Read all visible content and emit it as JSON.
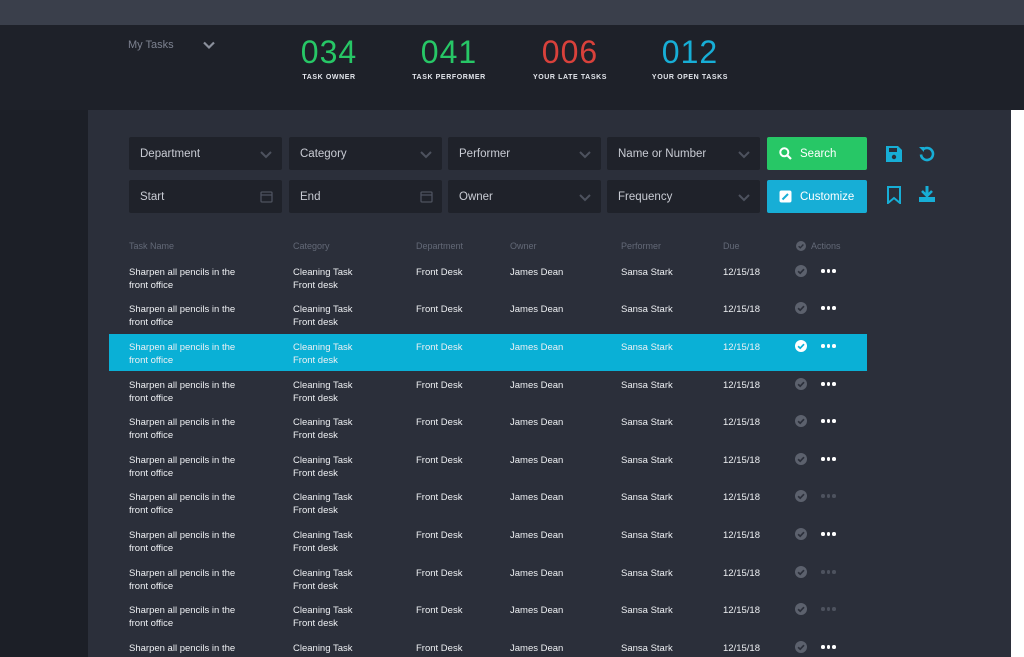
{
  "colors": {
    "background": "#1e2129",
    "panel": "#2b2f3a",
    "field": "#1f222a",
    "green": "#27c766",
    "red": "#d9413b",
    "blue": "#17aed6",
    "selected_row": "#0ab0d6"
  },
  "header": {
    "view_select": {
      "label": "My Tasks",
      "icon": "chevron-down-icon"
    },
    "stats": [
      {
        "value": "034",
        "label": "TASK OWNER",
        "color": "#27c766"
      },
      {
        "value": "041",
        "label": "TASK PERFORMER",
        "color": "#27c766"
      },
      {
        "value": "006",
        "label": "YOUR LATE TASKS",
        "color": "#d9413b"
      },
      {
        "value": "012",
        "label": "YOUR OPEN TASKS",
        "color": "#17aed6"
      }
    ]
  },
  "filters": {
    "department": "Department",
    "category": "Category",
    "performer": "Performer",
    "name_or_number": "Name or Number",
    "start": "Start",
    "end": "End",
    "owner": "Owner",
    "frequency": "Frequency",
    "search_button": "Search",
    "customize_button": "Customize"
  },
  "toolbar_icons": [
    "save-icon",
    "undo-icon",
    "bookmark-icon",
    "download-icon"
  ],
  "table": {
    "columns": {
      "task_name": "Task Name",
      "category": "Category",
      "department": "Department",
      "owner": "Owner",
      "performer": "Performer",
      "due": "Due",
      "actions": "Actions"
    },
    "rows": [
      {
        "task_line1": "Sharpen all pencils in the",
        "task_line2": "front office",
        "category_line1": "Cleaning Task",
        "category_line2": "Front desk",
        "department": "Front Desk",
        "owner": "James Dean",
        "performer": "Sansa Stark",
        "due": "12/15/18",
        "selected": false,
        "actions_enabled": true
      },
      {
        "task_line1": "Sharpen all pencils in the",
        "task_line2": "front office",
        "category_line1": "Cleaning Task",
        "category_line2": "Front desk",
        "department": "Front Desk",
        "owner": "James Dean",
        "performer": "Sansa Stark",
        "due": "12/15/18",
        "selected": false,
        "actions_enabled": true
      },
      {
        "task_line1": "Sharpen all pencils in the",
        "task_line2": "front office",
        "category_line1": "Cleaning Task",
        "category_line2": "Front desk",
        "department": "Front Desk",
        "owner": "James Dean",
        "performer": "Sansa Stark",
        "due": "12/15/18",
        "selected": true,
        "actions_enabled": true
      },
      {
        "task_line1": "Sharpen all pencils in the",
        "task_line2": "front office",
        "category_line1": "Cleaning Task",
        "category_line2": "Front desk",
        "department": "Front Desk",
        "owner": "James Dean",
        "performer": "Sansa Stark",
        "due": "12/15/18",
        "selected": false,
        "actions_enabled": true
      },
      {
        "task_line1": "Sharpen all pencils in the",
        "task_line2": "front office",
        "category_line1": "Cleaning Task",
        "category_line2": "Front desk",
        "department": "Front Desk",
        "owner": "James Dean",
        "performer": "Sansa Stark",
        "due": "12/15/18",
        "selected": false,
        "actions_enabled": true
      },
      {
        "task_line1": "Sharpen all pencils in the",
        "task_line2": "front office",
        "category_line1": "Cleaning Task",
        "category_line2": "Front desk",
        "department": "Front Desk",
        "owner": "James Dean",
        "performer": "Sansa Stark",
        "due": "12/15/18",
        "selected": false,
        "actions_enabled": true
      },
      {
        "task_line1": "Sharpen all pencils in the",
        "task_line2": "front office",
        "category_line1": "Cleaning Task",
        "category_line2": "Front desk",
        "department": "Front Desk",
        "owner": "James Dean",
        "performer": "Sansa Stark",
        "due": "12/15/18",
        "selected": false,
        "actions_enabled": false
      },
      {
        "task_line1": "Sharpen all pencils in the",
        "task_line2": "front office",
        "category_line1": "Cleaning Task",
        "category_line2": "Front desk",
        "department": "Front Desk",
        "owner": "James Dean",
        "performer": "Sansa Stark",
        "due": "12/15/18",
        "selected": false,
        "actions_enabled": true
      },
      {
        "task_line1": "Sharpen all pencils in the",
        "task_line2": "front office",
        "category_line1": "Cleaning Task",
        "category_line2": "Front desk",
        "department": "Front Desk",
        "owner": "James Dean",
        "performer": "Sansa Stark",
        "due": "12/15/18",
        "selected": false,
        "actions_enabled": false
      },
      {
        "task_line1": "Sharpen all pencils in the",
        "task_line2": "front office",
        "category_line1": "Cleaning Task",
        "category_line2": "Front desk",
        "department": "Front Desk",
        "owner": "James Dean",
        "performer": "Sansa Stark",
        "due": "12/15/18",
        "selected": false,
        "actions_enabled": false
      },
      {
        "task_line1": "Sharpen all pencils in the",
        "task_line2": "",
        "category_line1": "Cleaning Task",
        "category_line2": "",
        "department": "Front Desk",
        "owner": "James Dean",
        "performer": "Sansa Stark",
        "due": "12/15/18",
        "selected": false,
        "actions_enabled": true
      }
    ]
  }
}
